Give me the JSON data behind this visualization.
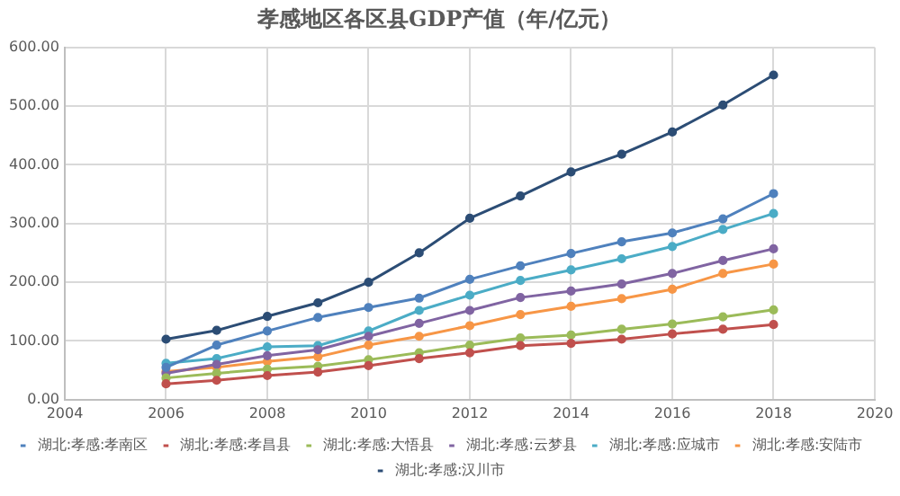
{
  "chart_data": {
    "type": "line",
    "title": "孝感地区各区县GDP产值（年/亿元）",
    "x": [
      2006,
      2007,
      2008,
      2009,
      2010,
      2011,
      2012,
      2013,
      2014,
      2015,
      2016,
      2017,
      2018
    ],
    "xlim": [
      2004,
      2020
    ],
    "xticks": [
      2004,
      2006,
      2008,
      2010,
      2012,
      2014,
      2016,
      2018,
      2020
    ],
    "ylim": [
      0,
      600
    ],
    "yticks": [
      {
        "value": 0,
        "label": "0.00"
      },
      {
        "value": 100,
        "label": "100.00"
      },
      {
        "value": 200,
        "label": "200.00"
      },
      {
        "value": 300,
        "label": "300.00"
      },
      {
        "value": 400,
        "label": "400.00"
      },
      {
        "value": 500,
        "label": "500.00"
      },
      {
        "value": 600,
        "label": "600.00"
      }
    ],
    "grid": true,
    "legend": "bottom",
    "marker": "circle",
    "series": [
      {
        "name": "湖北:孝感:孝南区",
        "color": "#4f81bd",
        "values": [
          55,
          93,
          117,
          140,
          157,
          173,
          205,
          228,
          249,
          269,
          284,
          308,
          351
        ]
      },
      {
        "name": "湖北:孝感:孝昌县",
        "color": "#c0504d",
        "values": [
          27,
          33,
          41,
          47,
          58,
          70,
          80,
          92,
          96,
          103,
          112,
          120,
          128
        ]
      },
      {
        "name": "湖北:孝感:大悟县",
        "color": "#9bbb59",
        "values": [
          37,
          45,
          52,
          57,
          68,
          80,
          93,
          105,
          110,
          120,
          129,
          141,
          153
        ]
      },
      {
        "name": "湖北:孝感:云梦县",
        "color": "#8064a2",
        "values": [
          45,
          60,
          75,
          85,
          108,
          130,
          152,
          174,
          185,
          197,
          215,
          237,
          257
        ]
      },
      {
        "name": "湖北:孝感:应城市",
        "color": "#4bacc6",
        "values": [
          62,
          70,
          90,
          92,
          117,
          152,
          178,
          203,
          221,
          240,
          261,
          290,
          317
        ]
      },
      {
        "name": "湖北:孝感:安陆市",
        "color": "#f79646",
        "values": [
          48,
          55,
          65,
          73,
          93,
          108,
          126,
          145,
          159,
          172,
          188,
          215,
          231
        ]
      },
      {
        "name": "湖北:孝感:汉川市",
        "color": "#2c4d75",
        "values": [
          103,
          118,
          142,
          165,
          200,
          250,
          309,
          347,
          388,
          418,
          456,
          502,
          553
        ]
      }
    ]
  }
}
